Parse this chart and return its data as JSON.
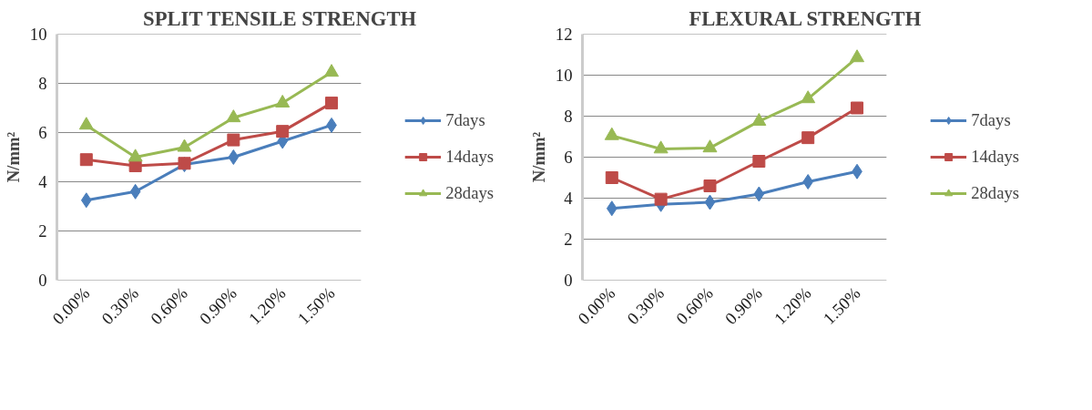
{
  "chart_data": [
    {
      "type": "line",
      "title": "SPLIT TENSILE STRENGTH",
      "ylabel": "N/mm²",
      "categories": [
        "0.00%",
        "0.30%",
        "0.60%",
        "0.90%",
        "1.20%",
        "1.50%"
      ],
      "ylim": [
        0,
        10
      ],
      "yticks": [
        0,
        2,
        4,
        6,
        8,
        10
      ],
      "grid": "y",
      "legend": "right",
      "series": [
        {
          "name": "7days",
          "color": "#4a7ebb",
          "marker": "diamond",
          "values": [
            3.25,
            3.6,
            4.7,
            5.0,
            5.65,
            6.3
          ]
        },
        {
          "name": "14days",
          "color": "#be4b48",
          "marker": "square",
          "values": [
            4.9,
            4.65,
            4.75,
            5.7,
            6.05,
            7.2
          ]
        },
        {
          "name": "28days",
          "color": "#98b954",
          "marker": "triangle",
          "values": [
            6.3,
            5.0,
            5.4,
            6.6,
            7.2,
            8.45
          ]
        }
      ]
    },
    {
      "type": "line",
      "title": "FLEXURAL STRENGTH",
      "ylabel": "N/mm²",
      "categories": [
        "0.00%",
        "0.30%",
        "0.60%",
        "0.90%",
        "1.20%",
        "1.50%"
      ],
      "ylim": [
        0,
        12
      ],
      "yticks": [
        0,
        2,
        4,
        6,
        8,
        10,
        12
      ],
      "grid": "y",
      "legend": "right",
      "series": [
        {
          "name": "7days",
          "color": "#4a7ebb",
          "marker": "diamond",
          "values": [
            3.5,
            3.7,
            3.8,
            4.2,
            4.8,
            5.3
          ]
        },
        {
          "name": "14days",
          "color": "#be4b48",
          "marker": "square",
          "values": [
            5.0,
            3.95,
            4.6,
            5.8,
            6.95,
            8.4
          ]
        },
        {
          "name": "28days",
          "color": "#98b954",
          "marker": "triangle",
          "values": [
            7.05,
            6.4,
            6.45,
            7.75,
            8.85,
            10.85
          ]
        }
      ]
    }
  ]
}
